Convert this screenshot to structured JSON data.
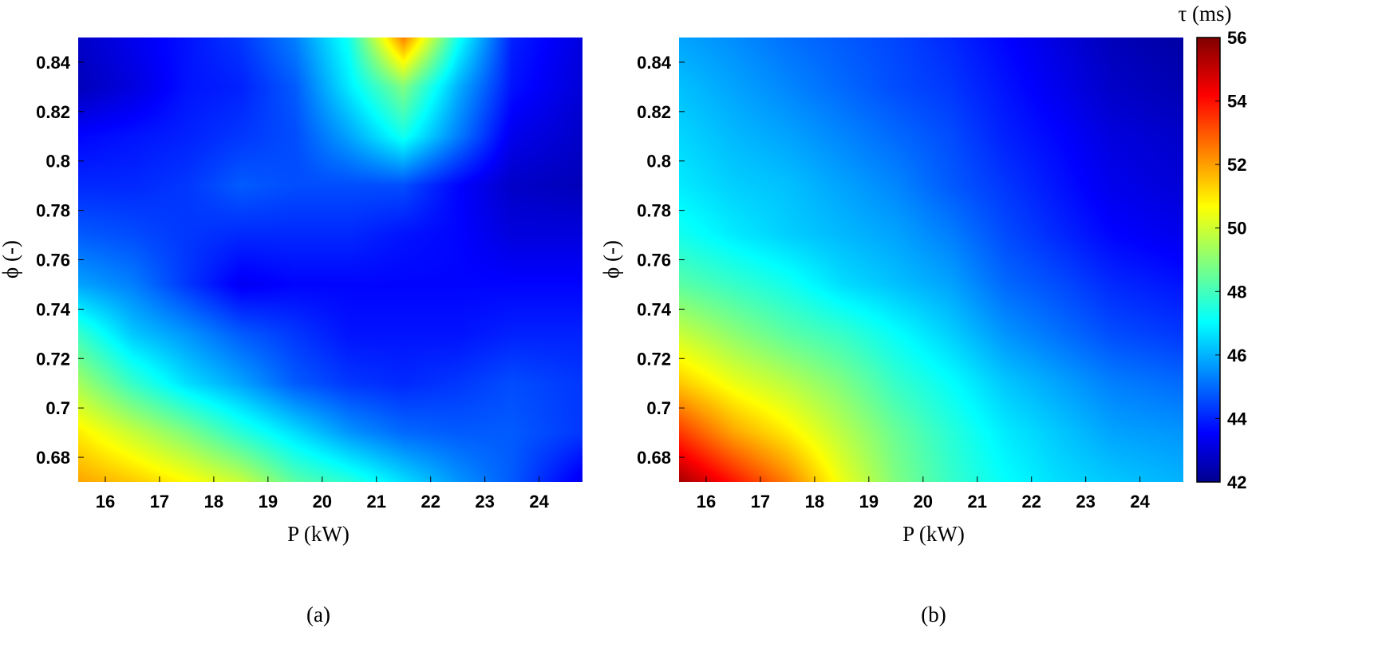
{
  "chart_data": [
    {
      "type": "heatmap",
      "panel_label": "(a)",
      "xlabel": "P (kW)",
      "ylabel": "ϕ (-)",
      "xlim": [
        15.5,
        24.8
      ],
      "ylim": [
        0.67,
        0.85
      ],
      "x_ticks": [
        "16",
        "17",
        "18",
        "19",
        "20",
        "21",
        "22",
        "23",
        "24"
      ],
      "y_ticks": [
        "0.68",
        "0.7",
        "0.72",
        "0.74",
        "0.76",
        "0.78",
        "0.8",
        "0.82",
        "0.84"
      ],
      "x": [
        15.5,
        16.5,
        17.5,
        18.5,
        19.5,
        20.5,
        21.5,
        22.5,
        23.5,
        24.8
      ],
      "y": [
        0.67,
        0.69,
        0.71,
        0.73,
        0.75,
        0.77,
        0.79,
        0.81,
        0.83,
        0.85
      ],
      "z": [
        [
          52.0,
          51.5,
          50.8,
          50.0,
          48.5,
          47.8,
          46.8,
          45.8,
          45.0,
          43.5
        ],
        [
          51.0,
          50.0,
          49.0,
          47.8,
          46.8,
          45.8,
          45.2,
          45.0,
          45.0,
          44.5
        ],
        [
          49.5,
          48.0,
          46.8,
          46.0,
          45.0,
          44.5,
          44.3,
          44.5,
          44.8,
          44.5
        ],
        [
          48.0,
          46.5,
          45.8,
          45.0,
          44.5,
          44.0,
          44.0,
          44.0,
          44.2,
          44.2
        ],
        [
          46.0,
          45.5,
          44.5,
          43.6,
          43.8,
          43.8,
          43.8,
          43.8,
          43.8,
          43.8
        ],
        [
          45.0,
          44.8,
          44.5,
          44.3,
          44.3,
          44.3,
          44.0,
          43.8,
          43.3,
          43.3
        ],
        [
          44.3,
          44.3,
          44.5,
          45.0,
          44.8,
          44.8,
          44.8,
          43.8,
          43.0,
          42.8
        ],
        [
          43.8,
          44.0,
          44.2,
          44.5,
          44.8,
          46.0,
          47.5,
          45.5,
          43.5,
          43.0
        ],
        [
          42.8,
          43.3,
          44.0,
          44.2,
          45.0,
          47.0,
          49.0,
          46.2,
          44.0,
          43.2
        ],
        [
          43.0,
          43.5,
          44.0,
          44.5,
          45.5,
          47.5,
          52.5,
          47.5,
          44.2,
          43.3
        ]
      ]
    },
    {
      "type": "heatmap",
      "panel_label": "(b)",
      "xlabel": "P (kW)",
      "ylabel": "ϕ (-)",
      "xlim": [
        15.5,
        24.8
      ],
      "ylim": [
        0.67,
        0.85
      ],
      "x_ticks": [
        "16",
        "17",
        "18",
        "19",
        "20",
        "21",
        "22",
        "23",
        "24"
      ],
      "y_ticks": [
        "0.68",
        "0.7",
        "0.72",
        "0.74",
        "0.76",
        "0.78",
        "0.8",
        "0.82",
        "0.84"
      ],
      "x": [
        15.5,
        16.5,
        17.5,
        18.5,
        19.5,
        20.5,
        21.5,
        22.5,
        23.5,
        24.8
      ],
      "y": [
        0.67,
        0.69,
        0.71,
        0.73,
        0.75,
        0.77,
        0.79,
        0.81,
        0.83,
        0.85
      ],
      "z": [
        [
          55.5,
          54.0,
          52.5,
          50.5,
          49.0,
          48.0,
          47.3,
          46.8,
          46.5,
          46.2
        ],
        [
          53.5,
          52.0,
          51.0,
          49.8,
          48.7,
          47.8,
          47.0,
          46.5,
          46.0,
          45.8
        ],
        [
          51.5,
          50.5,
          49.8,
          49.0,
          48.0,
          47.3,
          46.5,
          46.0,
          45.5,
          45.2
        ],
        [
          50.0,
          49.2,
          48.5,
          48.0,
          47.3,
          46.6,
          45.8,
          45.3,
          44.8,
          44.5
        ],
        [
          48.5,
          48.0,
          47.5,
          46.8,
          46.4,
          46.0,
          45.2,
          44.8,
          44.3,
          44.0
        ],
        [
          47.5,
          47.0,
          46.6,
          46.3,
          46.0,
          45.5,
          44.8,
          44.3,
          43.8,
          43.5
        ],
        [
          47.0,
          46.6,
          46.4,
          46.0,
          45.6,
          45.0,
          44.5,
          44.0,
          43.5,
          43.2
        ],
        [
          46.7,
          46.3,
          46.0,
          45.6,
          45.2,
          44.8,
          44.2,
          43.8,
          43.3,
          43.0
        ],
        [
          46.4,
          46.0,
          45.6,
          45.2,
          44.8,
          44.5,
          44.0,
          43.5,
          43.0,
          42.7
        ],
        [
          46.0,
          45.7,
          45.3,
          45.0,
          44.7,
          44.3,
          43.8,
          43.3,
          42.8,
          42.5
        ]
      ]
    }
  ],
  "colorbar": {
    "title": "τ (ms)",
    "min": 42,
    "max": 56,
    "ticks": [
      "42",
      "44",
      "46",
      "48",
      "50",
      "52",
      "54",
      "56"
    ],
    "colormap": "jet",
    "colors": [
      "#00008f",
      "#0000ff",
      "#00ffff",
      "#ffff00",
      "#ff0000",
      "#800000"
    ]
  }
}
